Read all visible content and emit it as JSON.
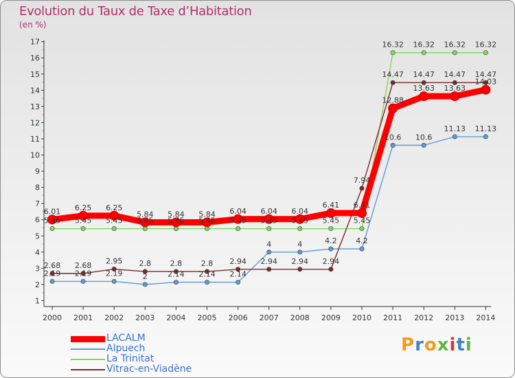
{
  "title": "Evolution du Taux de Taxe d’Habitation",
  "unit": "(en %)",
  "logo_text": "Proxiti",
  "logo_colors": [
    "#f39a1f",
    "#3f83c5",
    "#f39a1f",
    "#5fb53a",
    "#e5302a",
    "#3f83c5",
    "#5fb53a"
  ],
  "chart_data": {
    "type": "line",
    "x": [
      2000,
      2001,
      2002,
      2003,
      2004,
      2005,
      2006,
      2007,
      2008,
      2009,
      2010,
      2011,
      2012,
      2013,
      2014
    ],
    "ylim": [
      1,
      17
    ],
    "yticks": [
      1,
      2,
      3,
      4,
      5,
      6,
      7,
      8,
      9,
      10,
      11,
      12,
      13,
      14,
      15,
      16,
      17
    ],
    "grid": false,
    "legend_position": "bottom-left",
    "series": [
      {
        "name": "LACALM",
        "color": "#ff0000",
        "values": [
          6.01,
          6.25,
          6.25,
          5.84,
          5.84,
          5.84,
          6.04,
          6.04,
          6.04,
          6.41,
          6.41,
          12.88,
          13.63,
          13.63,
          14.03
        ],
        "labels": [
          "6.01",
          "6.25",
          "6.25",
          "5.84",
          "5.84",
          "5.84",
          "6.04",
          "6.04",
          "6.04",
          "6.41",
          "6.41",
          "12.88",
          "13.63",
          "13.63",
          "14.03"
        ]
      },
      {
        "name": "Alpuech",
        "color": "#5b9bd5",
        "values": [
          2.19,
          2.19,
          2.19,
          2,
          2.14,
          2.14,
          2.14,
          4,
          4,
          4.2,
          4.2,
          10.6,
          10.6,
          11.13,
          11.13
        ],
        "labels": [
          "2.19",
          "2.19",
          "2.19",
          "2",
          "2.14",
          "2.14",
          "2.14",
          "4",
          "4",
          "4.2",
          "4.2",
          "10.6",
          "10.6",
          "11.13",
          "11.13"
        ]
      },
      {
        "name": "La Trinitat",
        "color": "#7ed957",
        "values": [
          5.45,
          5.45,
          5.45,
          5.45,
          5.45,
          5.45,
          5.45,
          5.45,
          5.45,
          5.45,
          5.45,
          16.32,
          16.32,
          16.32,
          16.32
        ],
        "labels": [
          "5.45",
          "5.45",
          "5.45",
          "5.45",
          "5.45",
          "5.45",
          "5.45",
          "5.45",
          "5.45",
          "5.45",
          "5.45",
          "16.32",
          "16.32",
          "16.32",
          "16.32"
        ]
      },
      {
        "name": "Vitrac-en-Viadène",
        "color": "#7b2a2a",
        "values": [
          2.68,
          2.68,
          2.95,
          2.8,
          2.8,
          2.8,
          2.94,
          2.94,
          2.94,
          2.94,
          7.94,
          14.47,
          14.47,
          14.47,
          14.47
        ],
        "labels": [
          "2.68",
          "2.68",
          "2.95",
          "2.8",
          "2.8",
          "2.8",
          "2.94",
          "2.94",
          "2.94",
          "2.94",
          "7.94",
          "14.47",
          "14.47",
          "14.47",
          "14.47"
        ]
      }
    ]
  }
}
